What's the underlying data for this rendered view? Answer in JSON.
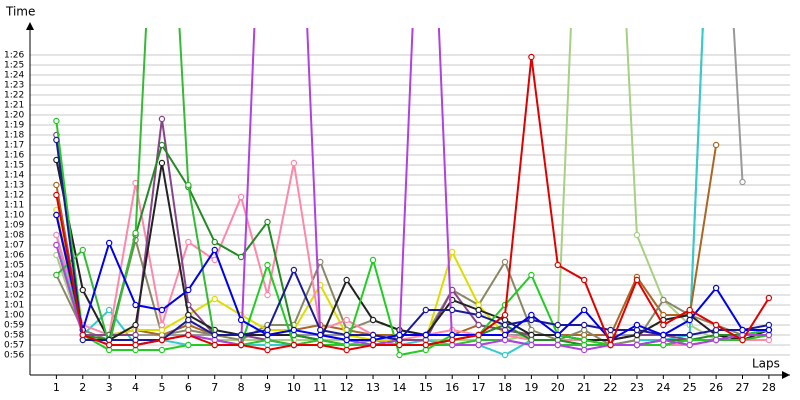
{
  "chart_data": {
    "type": "line",
    "y_label": "Time",
    "x_label": "Laps",
    "x": [
      1,
      2,
      3,
      4,
      5,
      6,
      7,
      8,
      9,
      10,
      11,
      12,
      13,
      14,
      15,
      16,
      17,
      18,
      19,
      20,
      21,
      22,
      23,
      24,
      25,
      26,
      27,
      28
    ],
    "xlim": [
      0,
      28.8
    ],
    "xticks": [
      1,
      2,
      3,
      4,
      5,
      6,
      7,
      8,
      9,
      10,
      11,
      12,
      13,
      14,
      15,
      16,
      17,
      18,
      19,
      20,
      21,
      22,
      23,
      24,
      25,
      26,
      27,
      28
    ],
    "ylim": [
      54,
      88.5
    ],
    "yticks": [
      {
        "value": 56,
        "label": "0:56"
      },
      {
        "value": 57,
        "label": "0:57"
      },
      {
        "value": 58,
        "label": "0:58"
      },
      {
        "value": 59,
        "label": "0:59"
      },
      {
        "value": 60,
        "label": "1:00"
      },
      {
        "value": 61,
        "label": "1:01"
      },
      {
        "value": 62,
        "label": "1:02"
      },
      {
        "value": 63,
        "label": "1:03"
      },
      {
        "value": 64,
        "label": "1:04"
      },
      {
        "value": 65,
        "label": "1:05"
      },
      {
        "value": 66,
        "label": "1:06"
      },
      {
        "value": 67,
        "label": "1:07"
      },
      {
        "value": 68,
        "label": "1:08"
      },
      {
        "value": 69,
        "label": "1:09"
      },
      {
        "value": 70,
        "label": "1:10"
      },
      {
        "value": 71,
        "label": "1:11"
      },
      {
        "value": 72,
        "label": "1:12"
      },
      {
        "value": 73,
        "label": "1:13"
      },
      {
        "value": 74,
        "label": "1:14"
      },
      {
        "value": 75,
        "label": "1:15"
      },
      {
        "value": 76,
        "label": "1:16"
      },
      {
        "value": 77,
        "label": "1:17"
      },
      {
        "value": 78,
        "label": "1:18"
      },
      {
        "value": 79,
        "label": "1:19"
      },
      {
        "value": 80,
        "label": "1:20"
      },
      {
        "value": 81,
        "label": "1:21"
      },
      {
        "value": 82,
        "label": "1:22"
      },
      {
        "value": 83,
        "label": "1:23"
      },
      {
        "value": 84,
        "label": "1:24"
      },
      {
        "value": 85,
        "label": "1:25"
      },
      {
        "value": 86,
        "label": "1:26"
      }
    ],
    "grid": true,
    "series": [
      {
        "color": "#a8d080",
        "values": [
          66,
          58,
          58,
          58.5,
          58,
          58,
          57.5,
          57.5,
          57.5,
          57.5,
          57.5,
          57.5,
          57.5,
          57.5,
          57.5,
          57.5,
          57.5,
          57.5,
          58,
          58,
          120,
          120,
          68,
          61.5,
          59,
          57.5,
          57.5,
          58
        ]
      },
      {
        "color": "#999999",
        "values": [
          67,
          58,
          58,
          58,
          58,
          58,
          58,
          58,
          58,
          58,
          58,
          58,
          58,
          58,
          58,
          58,
          58,
          58,
          58,
          58,
          58,
          58,
          58,
          58,
          58,
          120,
          73.3,
          null
        ]
      },
      {
        "color": "#33cccc",
        "values": [
          68,
          58,
          60.5,
          57,
          57.5,
          57,
          57,
          57,
          57,
          57,
          57,
          57,
          57.5,
          57,
          57.5,
          57,
          57,
          56,
          57.5,
          57.5,
          57,
          57,
          57.5,
          57.5,
          58,
          120,
          null,
          null
        ]
      },
      {
        "color": "#aa6622",
        "values": [
          73,
          58,
          58,
          58.5,
          58,
          59,
          58,
          58,
          58,
          58.5,
          59,
          58.5,
          58,
          58,
          58,
          58,
          59,
          58.5,
          58,
          58,
          58,
          58,
          63.8,
          60,
          60,
          77,
          null,
          null
        ]
      },
      {
        "color": "#888866",
        "values": [
          64,
          58.5,
          57.5,
          67.5,
          58,
          58.5,
          58,
          57.5,
          59,
          59,
          65.3,
          58.5,
          59.5,
          58.5,
          58,
          62.5,
          61,
          65.3,
          58.5,
          57.5,
          58.5,
          57,
          57.5,
          61.5,
          60,
          59,
          58,
          58.5
        ]
      },
      {
        "color": "#dddd00",
        "values": [
          70.5,
          58,
          58,
          58.5,
          58.5,
          60,
          61.6,
          60,
          58.5,
          58.5,
          63,
          58,
          57.5,
          57.5,
          57.5,
          66.3,
          61,
          58,
          57.5,
          57.5,
          57.5,
          57,
          57,
          57,
          57,
          57.5,
          57.5,
          58
        ]
      },
      {
        "color": "#ff88aa",
        "values": [
          68,
          59,
          58,
          73.2,
          59,
          67.3,
          65.5,
          71.8,
          62,
          75.2,
          58.5,
          59.5,
          58,
          57.5,
          58,
          58.5,
          58,
          58,
          57.5,
          57.5,
          57.5,
          57,
          57,
          57,
          57,
          57.5,
          57.5,
          57.5
        ]
      },
      {
        "color": "#884488",
        "values": [
          78,
          58,
          58,
          58,
          79.6,
          61,
          58,
          58,
          57.5,
          57,
          57,
          57,
          57,
          57.5,
          57.5,
          62.5,
          59,
          58.5,
          58,
          58,
          57.5,
          57.5,
          58,
          58,
          57.5,
          57.5,
          58,
          58
        ]
      },
      {
        "color": "#222222",
        "values": [
          75.5,
          62.5,
          57.5,
          59,
          75.2,
          60,
          58.5,
          58,
          58,
          58,
          57.5,
          63.5,
          59.5,
          58.5,
          58,
          61.5,
          60.5,
          59.5,
          58,
          58,
          57.5,
          57.5,
          58,
          59.5,
          60,
          58,
          57.5,
          58.5
        ]
      },
      {
        "color": "#228b22",
        "values": [
          70,
          58,
          57.5,
          68,
          77,
          72.8,
          67.3,
          65.8,
          69.3,
          58,
          57.5,
          57,
          57,
          57,
          57,
          57.5,
          58,
          59,
          57.5,
          57.5,
          57,
          57,
          57,
          57.5,
          57.5,
          58,
          58,
          58.5
        ]
      },
      {
        "color": "#33bb33",
        "values": [
          64,
          66.5,
          57,
          68.2,
          120,
          73,
          57.5,
          57,
          57.5,
          57,
          57.5,
          57,
          57,
          57,
          57,
          57,
          57.5,
          57.5,
          57,
          57,
          57,
          57,
          57,
          57,
          57.5,
          57.5,
          57.5,
          58
        ]
      },
      {
        "color": "#22cc22",
        "values": [
          79.4,
          58,
          56.5,
          56.5,
          56.5,
          57,
          57,
          57,
          65,
          57,
          57,
          57,
          65.5,
          56,
          56.5,
          58,
          58,
          61,
          64,
          58,
          57.5,
          57,
          57,
          57,
          57.5,
          57.5,
          58,
          58.5
        ]
      },
      {
        "color": "#b040e0",
        "values": [
          67,
          58,
          57,
          57,
          57.5,
          58,
          57.5,
          57,
          120,
          120,
          58,
          57.5,
          57,
          57.5,
          120,
          57,
          57,
          57.5,
          57,
          57,
          56.5,
          57,
          57,
          57.5,
          57,
          57.5,
          58,
          58
        ]
      },
      {
        "color": "#1a1a99",
        "values": [
          77.5,
          57.5,
          57.5,
          57.5,
          57.5,
          59.5,
          58,
          58,
          58.5,
          64.5,
          58.5,
          58,
          58,
          57.5,
          60.5,
          60.5,
          60,
          59,
          59.5,
          59,
          59,
          58.5,
          58.5,
          58,
          58,
          58.5,
          58.5,
          59
        ]
      },
      {
        "color": "#0000ee",
        "values": [
          70,
          58.5,
          67.2,
          61,
          60.5,
          62.5,
          66.5,
          59.5,
          58,
          58.5,
          58,
          57.5,
          57.5,
          58,
          58,
          58,
          58,
          58,
          60,
          58,
          60.5,
          57.5,
          59,
          58,
          59.5,
          62.7,
          58.5,
          58.5
        ]
      },
      {
        "color": "#e00000",
        "values": [
          72,
          58,
          57,
          57,
          57.5,
          58,
          57,
          57,
          56.5,
          57,
          57,
          56.5,
          57,
          57,
          57,
          57.5,
          58,
          60,
          85.8,
          65,
          63.5,
          57,
          63.5,
          59,
          60.5,
          59,
          57.5,
          61.7
        ]
      }
    ]
  }
}
